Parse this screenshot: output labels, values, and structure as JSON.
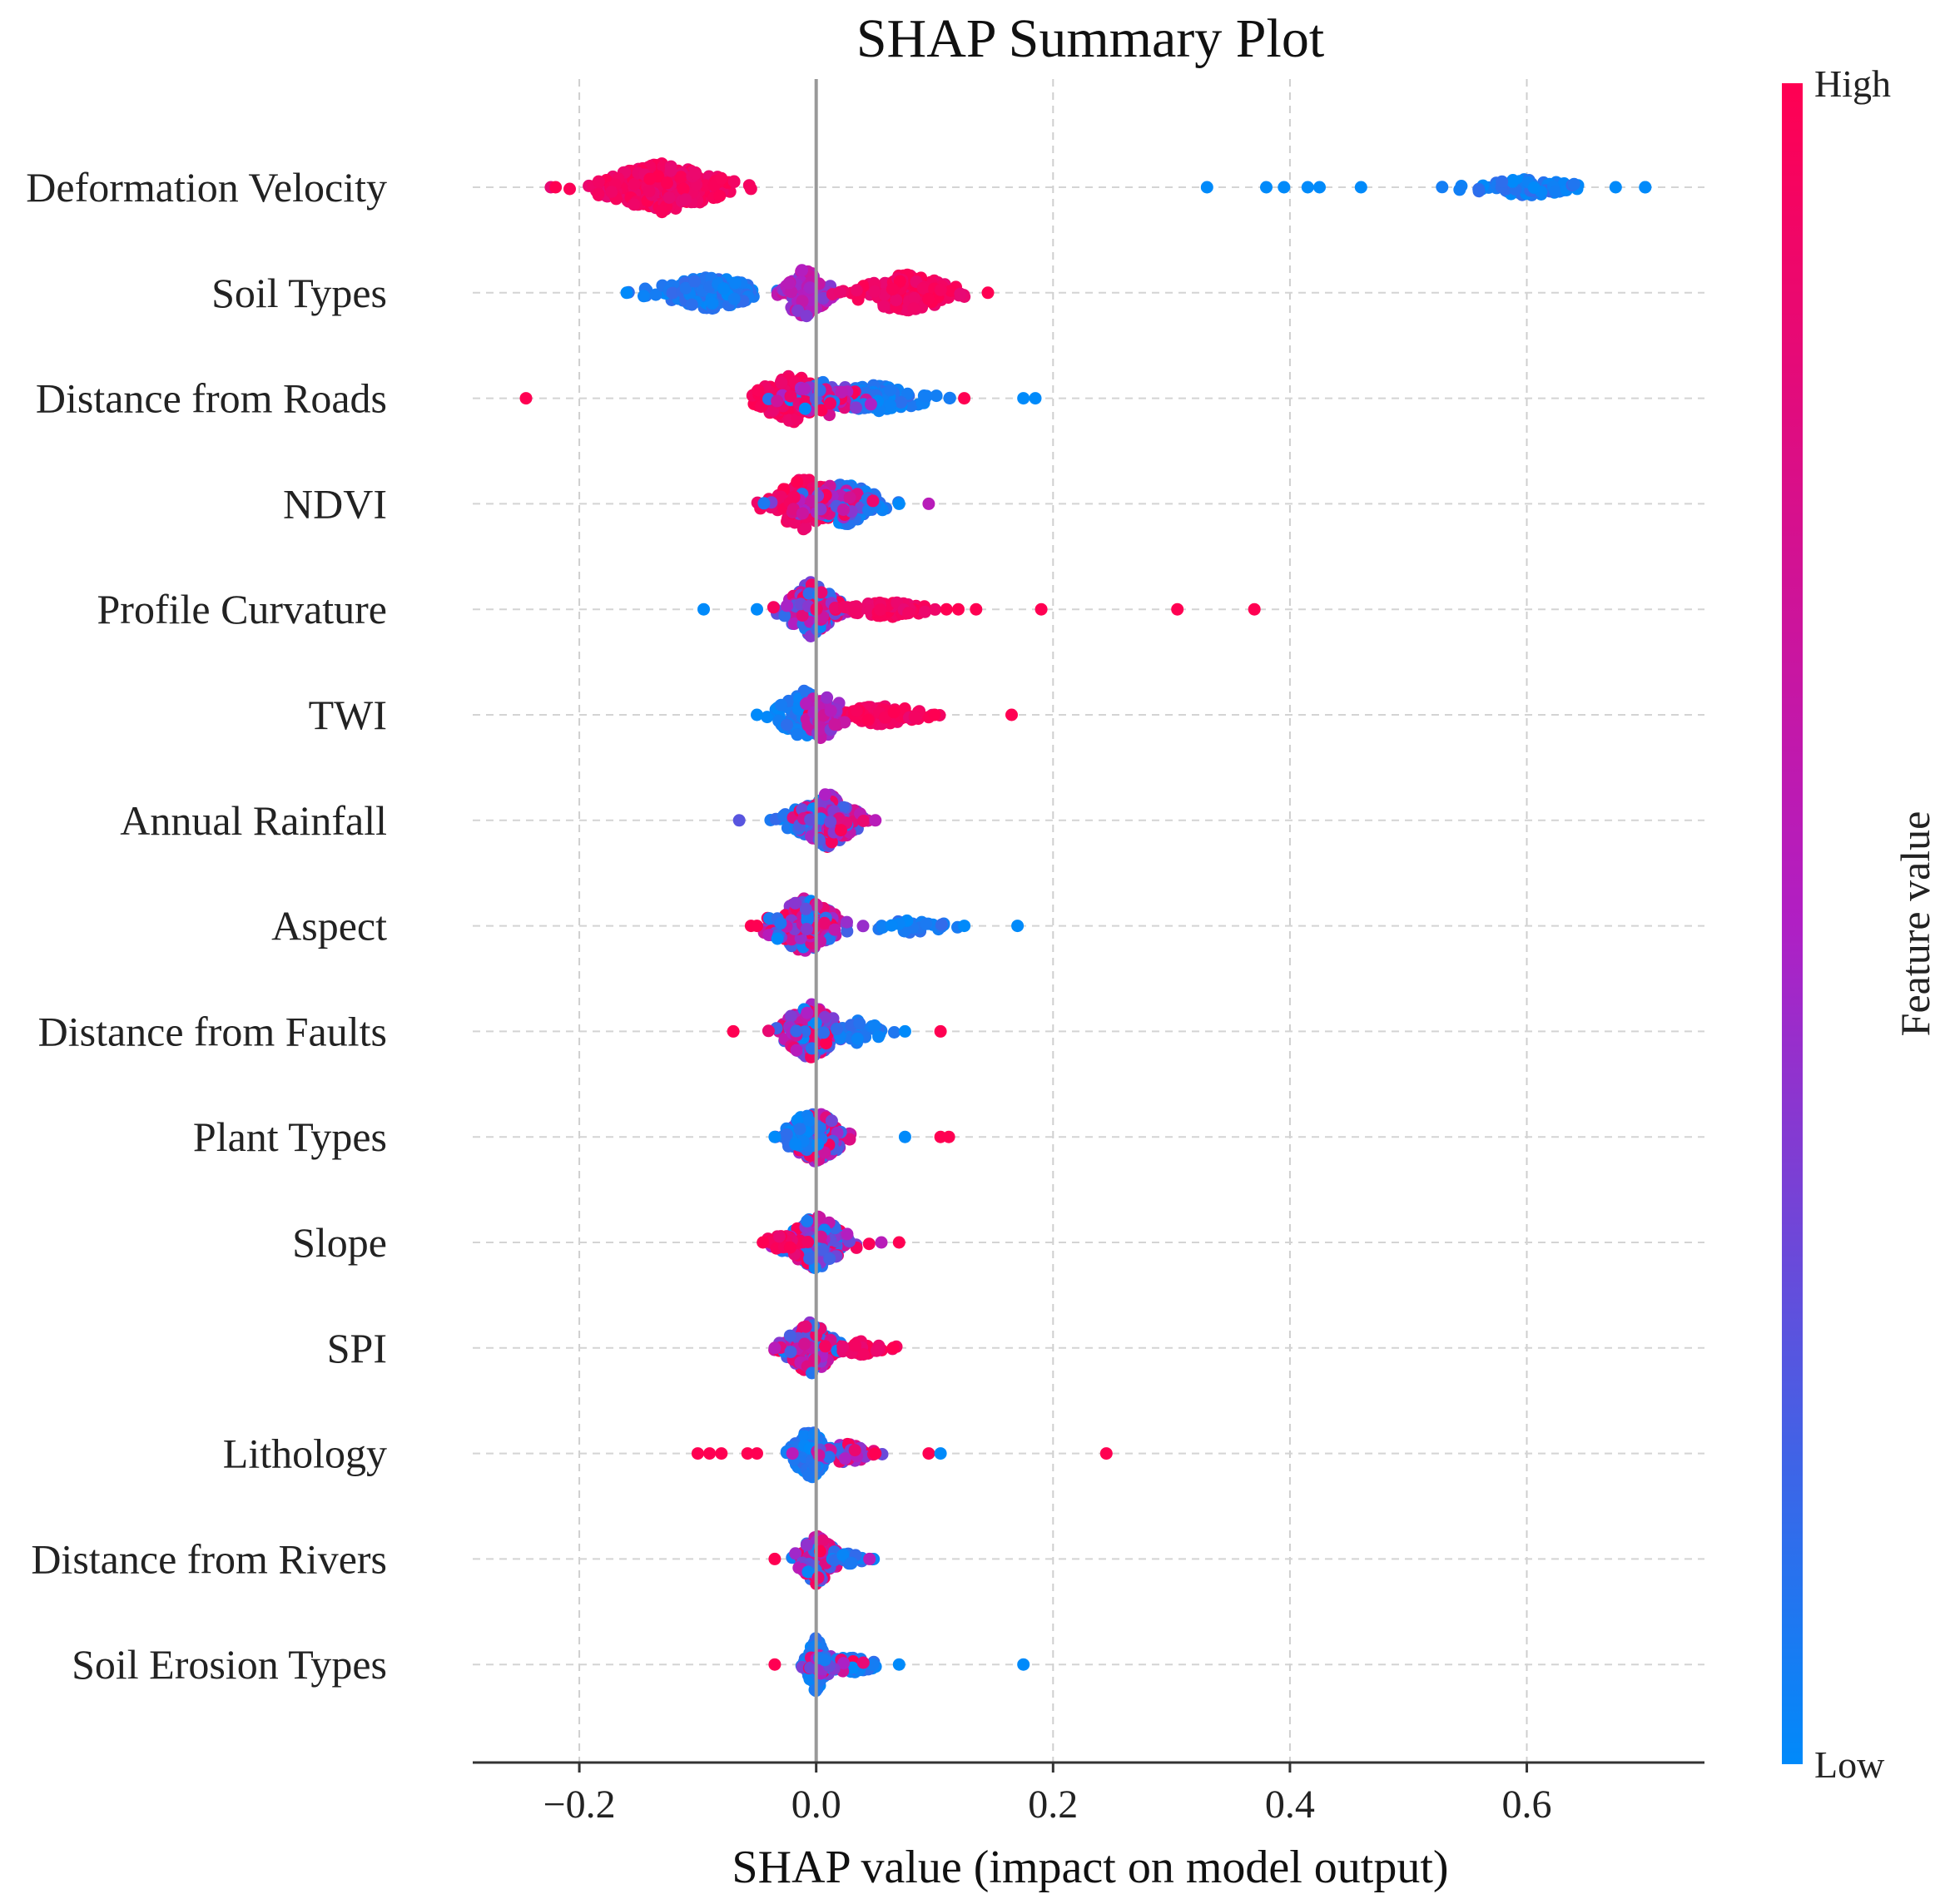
{
  "chart_data": {
    "type": "scatter",
    "subtype": "shap-beeswarm",
    "title": "SHAP Summary Plot",
    "xlabel": "SHAP value (impact on model output)",
    "ylabel": "",
    "xlim": [
      -0.29,
      0.75
    ],
    "x_ticks": [
      -0.2,
      0.0,
      0.2,
      0.4,
      0.6
    ],
    "x_tick_labels": [
      "−0.2",
      "0.0",
      "0.2",
      "0.4",
      "0.6"
    ],
    "grid": true,
    "colorbar": {
      "title": "Feature value",
      "high_label": "High",
      "low_label": "Low",
      "high_color": "#ff0052",
      "mid_color": "#b01fc4",
      "low_color": "#008afa"
    },
    "features": [
      {
        "name": "Deformation Velocity",
        "clusters": [
          {
            "center": -0.13,
            "spread": 0.045,
            "color": "high",
            "count": 340,
            "maxOffset": 30
          },
          {
            "center": 0.6,
            "spread": 0.045,
            "color": "low",
            "count": 80,
            "maxOffset": 10
          }
        ],
        "outliers": [
          {
            "x": -0.22,
            "c": 1
          },
          {
            "x": 0.33,
            "c": 0
          },
          {
            "x": 0.38,
            "c": 0
          },
          {
            "x": 0.395,
            "c": 0
          },
          {
            "x": 0.415,
            "c": 0
          },
          {
            "x": 0.425,
            "c": 0
          },
          {
            "x": 0.46,
            "c": 0
          },
          {
            "x": 0.675,
            "c": 0
          },
          {
            "x": 0.7,
            "c": 0
          },
          {
            "x": 0.7,
            "c": 0
          }
        ]
      },
      {
        "name": "Soil Types",
        "clusters": [
          {
            "center": -0.09,
            "spread": 0.04,
            "color": "low",
            "count": 130,
            "maxOffset": 20
          },
          {
            "center": -0.01,
            "spread": 0.018,
            "color": "mid",
            "count": 120,
            "maxOffset": 30
          },
          {
            "center": 0.075,
            "spread": 0.035,
            "color": "high",
            "count": 140,
            "maxOffset": 24
          }
        ],
        "outliers": [
          {
            "x": -0.16,
            "c": 0
          },
          {
            "x": 0.145,
            "c": 1
          }
        ]
      },
      {
        "name": "Distance from Roads",
        "clusters": [
          {
            "center": -0.02,
            "spread": 0.025,
            "color": "high",
            "count": 160,
            "maxOffset": 30
          },
          {
            "center": 0.05,
            "spread": 0.04,
            "color": "low",
            "count": 120,
            "maxOffset": 16
          },
          {
            "center": 0.01,
            "spread": 0.03,
            "color": "mix",
            "count": 60,
            "maxOffset": 22
          }
        ],
        "outliers": [
          {
            "x": -0.245,
            "c": 1
          },
          {
            "x": 0.125,
            "c": 1
          },
          {
            "x": 0.175,
            "c": 0
          },
          {
            "x": 0.185,
            "c": 0
          }
        ]
      },
      {
        "name": "NDVI",
        "clusters": [
          {
            "center": -0.01,
            "spread": 0.025,
            "color": "high",
            "count": 130,
            "maxOffset": 32
          },
          {
            "center": 0.025,
            "spread": 0.025,
            "color": "low",
            "count": 110,
            "maxOffset": 26
          },
          {
            "center": 0.01,
            "spread": 0.03,
            "color": "mix",
            "count": 60,
            "maxOffset": 24
          }
        ],
        "outliers": [
          {
            "x": 0.095,
            "c": 0.55
          },
          {
            "x": 0.07,
            "c": 0
          }
        ]
      },
      {
        "name": "Profile Curvature",
        "clusters": [
          {
            "center": -0.005,
            "spread": 0.02,
            "color": "mix",
            "count": 150,
            "maxOffset": 34
          },
          {
            "center": 0.06,
            "spread": 0.03,
            "color": "high",
            "count": 70,
            "maxOffset": 10
          }
        ],
        "outliers": [
          {
            "x": -0.095,
            "c": 0
          },
          {
            "x": -0.05,
            "c": 0
          },
          {
            "x": 0.11,
            "c": 1
          },
          {
            "x": 0.12,
            "c": 1
          },
          {
            "x": 0.135,
            "c": 1
          },
          {
            "x": 0.19,
            "c": 1
          },
          {
            "x": 0.305,
            "c": 1
          },
          {
            "x": 0.37,
            "c": 1
          }
        ]
      },
      {
        "name": "TWI",
        "clusters": [
          {
            "center": -0.01,
            "spread": 0.02,
            "color": "low",
            "count": 120,
            "maxOffset": 30
          },
          {
            "center": 0.055,
            "spread": 0.03,
            "color": "high",
            "count": 110,
            "maxOffset": 12
          },
          {
            "center": 0.005,
            "spread": 0.015,
            "color": "mid",
            "count": 50,
            "maxOffset": 30
          }
        ],
        "outliers": [
          {
            "x": -0.05,
            "c": 0
          },
          {
            "x": 0.1,
            "c": 1
          },
          {
            "x": 0.165,
            "c": 1
          }
        ]
      },
      {
        "name": "Annual Rainfall",
        "clusters": [
          {
            "center": -0.005,
            "spread": 0.02,
            "color": "low",
            "count": 90,
            "maxOffset": 20
          },
          {
            "center": 0.01,
            "spread": 0.02,
            "color": "mix",
            "count": 150,
            "maxOffset": 34
          }
        ],
        "outliers": [
          {
            "x": -0.065,
            "c": 0.25
          },
          {
            "x": 0.05,
            "c": 0.55
          }
        ]
      },
      {
        "name": "Aspect",
        "clusters": [
          {
            "center": -0.01,
            "spread": 0.025,
            "color": "mix",
            "count": 180,
            "maxOffset": 34
          },
          {
            "center": 0.08,
            "spread": 0.03,
            "color": "low",
            "count": 30,
            "maxOffset": 8
          }
        ],
        "outliers": [
          {
            "x": -0.055,
            "c": 1
          },
          {
            "x": -0.05,
            "c": 1
          },
          {
            "x": 0.125,
            "c": 0
          },
          {
            "x": 0.17,
            "c": 0
          }
        ]
      },
      {
        "name": "Distance from Faults",
        "clusters": [
          {
            "center": -0.005,
            "spread": 0.02,
            "color": "mix",
            "count": 200,
            "maxOffset": 34
          },
          {
            "center": 0.035,
            "spread": 0.02,
            "color": "low",
            "count": 40,
            "maxOffset": 14
          }
        ],
        "outliers": [
          {
            "x": -0.07,
            "c": 1
          },
          {
            "x": 0.075,
            "c": 0
          },
          {
            "x": 0.105,
            "c": 1
          }
        ]
      },
      {
        "name": "Plant Types",
        "clusters": [
          {
            "center": 0.0,
            "spread": 0.02,
            "color": "mix",
            "count": 170,
            "maxOffset": 32
          },
          {
            "center": -0.01,
            "spread": 0.015,
            "color": "low",
            "count": 40,
            "maxOffset": 28
          }
        ],
        "outliers": [
          {
            "x": -0.035,
            "c": 0
          },
          {
            "x": 0.075,
            "c": 0
          },
          {
            "x": 0.105,
            "c": 1
          },
          {
            "x": 0.112,
            "c": 1
          }
        ]
      },
      {
        "name": "Slope",
        "clusters": [
          {
            "center": 0.0,
            "spread": 0.025,
            "color": "mix",
            "count": 180,
            "maxOffset": 32
          },
          {
            "center": -0.03,
            "spread": 0.012,
            "color": "high",
            "count": 30,
            "maxOffset": 10
          }
        ],
        "outliers": [
          {
            "x": -0.045,
            "c": 1
          },
          {
            "x": 0.07,
            "c": 1
          },
          {
            "x": 0.055,
            "c": 0.55
          }
        ]
      },
      {
        "name": "SPI",
        "clusters": [
          {
            "center": -0.005,
            "spread": 0.018,
            "color": "mix",
            "count": 160,
            "maxOffset": 32
          },
          {
            "center": 0.04,
            "spread": 0.018,
            "color": "high",
            "count": 40,
            "maxOffset": 10
          }
        ],
        "outliers": [
          {
            "x": -0.035,
            "c": 0.55
          },
          {
            "x": 0.065,
            "c": 1
          }
        ]
      },
      {
        "name": "Lithology",
        "clusters": [
          {
            "center": -0.005,
            "spread": 0.012,
            "color": "low",
            "count": 110,
            "maxOffset": 32
          },
          {
            "center": 0.025,
            "spread": 0.02,
            "color": "mix",
            "count": 50,
            "maxOffset": 12
          }
        ],
        "outliers": [
          {
            "x": -0.1,
            "c": 1
          },
          {
            "x": -0.09,
            "c": 1
          },
          {
            "x": -0.08,
            "c": 1
          },
          {
            "x": -0.058,
            "c": 1
          },
          {
            "x": -0.05,
            "c": 1
          },
          {
            "x": -0.02,
            "c": 0.55
          },
          {
            "x": 0.05,
            "c": 1
          },
          {
            "x": 0.095,
            "c": 1
          },
          {
            "x": 0.105,
            "c": 0
          },
          {
            "x": 0.245,
            "c": 1
          }
        ]
      },
      {
        "name": "Distance from Rivers",
        "clusters": [
          {
            "center": 0.0,
            "spread": 0.015,
            "color": "mix",
            "count": 120,
            "maxOffset": 30
          },
          {
            "center": 0.03,
            "spread": 0.012,
            "color": "low",
            "count": 30,
            "maxOffset": 8
          }
        ],
        "outliers": [
          {
            "x": -0.035,
            "c": 1
          },
          {
            "x": 0.045,
            "c": 0.55
          }
        ]
      },
      {
        "name": "Soil Erosion Types",
        "clusters": [
          {
            "center": 0.0,
            "spread": 0.008,
            "color": "low",
            "count": 130,
            "maxOffset": 34
          },
          {
            "center": 0.03,
            "spread": 0.02,
            "color": "low",
            "count": 50,
            "maxOffset": 10
          },
          {
            "center": 0.01,
            "spread": 0.02,
            "color": "mix",
            "count": 30,
            "maxOffset": 14
          }
        ],
        "outliers": [
          {
            "x": -0.035,
            "c": 1
          },
          {
            "x": 0.07,
            "c": 0
          },
          {
            "x": 0.175,
            "c": 0
          }
        ]
      }
    ]
  }
}
